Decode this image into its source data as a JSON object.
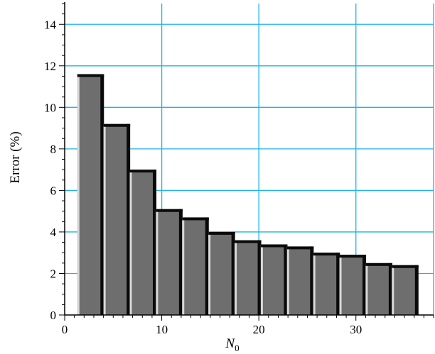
{
  "chart_data": {
    "type": "bar",
    "xlabel": "N",
    "xlabel_subscript": "0",
    "ylabel": "Error (%)",
    "xlim": [
      0,
      38
    ],
    "ylim": [
      0,
      15
    ],
    "xticks": [
      0,
      10,
      20,
      30
    ],
    "yticks": [
      0,
      2,
      4,
      6,
      8,
      10,
      12,
      14
    ],
    "grid": true,
    "bar_width": 2.6,
    "x": [
      2.6,
      5.3,
      8.0,
      10.7,
      13.4,
      16.1,
      18.8,
      21.5,
      24.2,
      26.9,
      29.6,
      32.3,
      35.0
    ],
    "values": [
      11.6,
      9.2,
      7.0,
      5.1,
      4.7,
      4.0,
      3.6,
      3.4,
      3.3,
      3.0,
      2.9,
      2.5,
      2.4
    ]
  },
  "colors": {
    "grid": "#1fb4e6",
    "bar_face": "#6e6e6e",
    "bar_shadow": "#0a0a0a",
    "bar_highlight": "#d9d9d9",
    "axis": "#000000"
  }
}
